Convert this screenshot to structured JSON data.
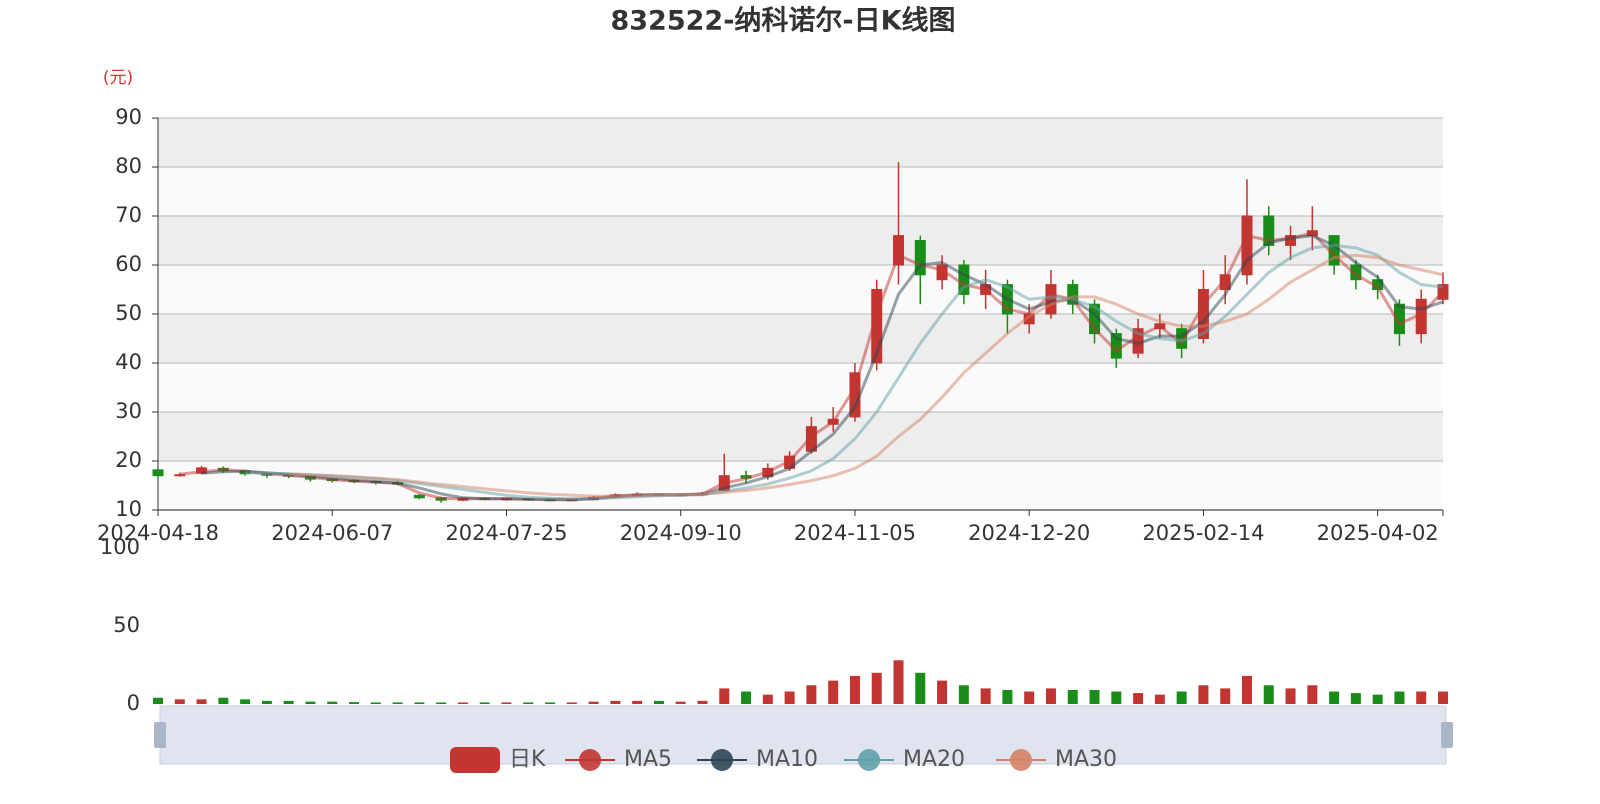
{
  "chart_data": {
    "type": "candlestick",
    "title": "832522-纳科诺尔-日K线图",
    "ylabel": "(元)",
    "categories": [
      "2024-04-18",
      null,
      null,
      null,
      null,
      null,
      null,
      null,
      "2024-06-07",
      null,
      null,
      null,
      null,
      null,
      null,
      null,
      "2024-07-25",
      null,
      null,
      null,
      null,
      null,
      null,
      null,
      "2024-09-10",
      null,
      null,
      null,
      null,
      null,
      null,
      null,
      "2024-11-05",
      null,
      null,
      null,
      null,
      null,
      null,
      null,
      "2024-12-20",
      null,
      null,
      null,
      null,
      null,
      null,
      null,
      "2025-02-14",
      null,
      null,
      null,
      null,
      null,
      null,
      null,
      "2025-04-02",
      null,
      null,
      null
    ],
    "ylim": [
      10,
      90
    ],
    "yticks": [
      10,
      20,
      30,
      40,
      50,
      60,
      70,
      80,
      90
    ],
    "grid": true,
    "series": [
      {
        "name": "日K",
        "type": "candlestick",
        "up_color": "#c23531",
        "down_color": "#1a8c1a",
        "values": [
          [
            18.2,
            17.0,
            16.6,
            18.5
          ],
          [
            17.0,
            17.2,
            16.8,
            17.6
          ],
          [
            17.5,
            18.6,
            17.3,
            19.0
          ],
          [
            18.5,
            18.0,
            17.6,
            18.9
          ],
          [
            18.0,
            17.4,
            17.0,
            18.2
          ],
          [
            17.4,
            17.1,
            16.6,
            17.6
          ],
          [
            17.1,
            16.9,
            16.5,
            17.3
          ],
          [
            16.9,
            16.3,
            15.8,
            17.1
          ],
          [
            16.3,
            16.0,
            15.6,
            16.5
          ],
          [
            16.0,
            15.8,
            15.5,
            16.3
          ],
          [
            15.8,
            15.6,
            15.2,
            16.0
          ],
          [
            15.6,
            15.3,
            15.0,
            16.0
          ],
          [
            13.0,
            12.5,
            12.2,
            13.2
          ],
          [
            12.5,
            12.0,
            11.5,
            12.7
          ],
          [
            12.0,
            12.4,
            11.8,
            12.6
          ],
          [
            12.4,
            12.2,
            12.0,
            12.6
          ],
          [
            12.2,
            12.3,
            11.9,
            12.5
          ],
          [
            12.3,
            12.1,
            11.9,
            12.4
          ],
          [
            12.1,
            12.0,
            11.8,
            12.3
          ],
          [
            12.0,
            12.1,
            11.8,
            12.3
          ],
          [
            12.1,
            12.6,
            12.0,
            12.9
          ],
          [
            12.6,
            13.1,
            12.4,
            13.4
          ],
          [
            13.1,
            13.2,
            12.8,
            13.6
          ],
          [
            13.2,
            13.0,
            12.8,
            13.4
          ],
          [
            13.0,
            13.1,
            12.8,
            13.4
          ],
          [
            13.1,
            13.4,
            12.9,
            13.7
          ],
          [
            14.0,
            17.0,
            13.8,
            21.5
          ],
          [
            17.0,
            16.5,
            15.5,
            18.0
          ],
          [
            16.8,
            18.5,
            16.2,
            19.5
          ],
          [
            18.5,
            21.0,
            18.0,
            22.0
          ],
          [
            22.0,
            27.0,
            21.5,
            29.0
          ],
          [
            27.5,
            28.5,
            26.0,
            31.0
          ],
          [
            29.0,
            38.0,
            28.0,
            40.0
          ],
          [
            40.0,
            55.0,
            38.5,
            57.0
          ],
          [
            60.0,
            66.0,
            56.0,
            81.0
          ],
          [
            65.0,
            58.0,
            52.0,
            66.0
          ],
          [
            57.0,
            60.0,
            55.0,
            62.0
          ],
          [
            60.0,
            54.0,
            52.0,
            61.0
          ],
          [
            54.0,
            56.0,
            51.0,
            59.0
          ],
          [
            56.0,
            50.0,
            46.0,
            57.0
          ],
          [
            48.0,
            50.0,
            46.0,
            52.0
          ],
          [
            50.0,
            56.0,
            49.0,
            59.0
          ],
          [
            56.0,
            52.0,
            50.0,
            57.0
          ],
          [
            52.0,
            46.0,
            44.0,
            53.0
          ],
          [
            46.0,
            41.0,
            39.0,
            47.0
          ],
          [
            42.0,
            47.0,
            41.0,
            49.0
          ],
          [
            47.0,
            48.0,
            45.0,
            50.0
          ],
          [
            47.0,
            43.0,
            41.0,
            48.0
          ],
          [
            45.0,
            55.0,
            44.0,
            59.0
          ],
          [
            55.0,
            58.0,
            52.0,
            62.0
          ],
          [
            58.0,
            70.0,
            56.0,
            77.5
          ],
          [
            70.0,
            64.0,
            62.0,
            72.0
          ],
          [
            64.0,
            66.0,
            61.0,
            68.0
          ],
          [
            66.0,
            67.0,
            63.0,
            72.0
          ],
          [
            66.0,
            60.0,
            58.0,
            66.0
          ],
          [
            60.0,
            57.0,
            55.0,
            61.0
          ],
          [
            57.0,
            55.0,
            53.0,
            58.0
          ],
          [
            52.0,
            46.0,
            43.5,
            53.0
          ],
          [
            46.0,
            53.0,
            44.0,
            55.0
          ],
          [
            53.0,
            56.0,
            52.0,
            58.5
          ]
        ]
      },
      {
        "name": "MA5",
        "color": "#c23531",
        "values": [
          null,
          17.3,
          17.8,
          18.2,
          17.9,
          17.4,
          17.1,
          16.7,
          16.2,
          15.9,
          15.7,
          15.4,
          13.5,
          12.4,
          12.3,
          12.3,
          12.3,
          12.2,
          12.1,
          12.1,
          12.4,
          12.9,
          13.1,
          13.1,
          13.1,
          13.3,
          15.5,
          16.4,
          17.8,
          20.0,
          25.0,
          28.0,
          35.0,
          50.0,
          62.0,
          60.0,
          59.0,
          56.0,
          55.0,
          51.0,
          50.0,
          54.0,
          53.0,
          47.0,
          42.5,
          45.5,
          47.5,
          44.0,
          52.0,
          57.0,
          66.0,
          65.0,
          65.5,
          66.5,
          62.0,
          58.0,
          55.5,
          48.0,
          50.0,
          54.5
        ]
      },
      {
        "name": "MA10",
        "color": "#2f4554",
        "values": [
          null,
          null,
          17.5,
          17.8,
          17.9,
          17.6,
          17.3,
          16.9,
          16.5,
          16.1,
          15.8,
          15.5,
          14.5,
          13.3,
          12.5,
          12.3,
          12.3,
          12.2,
          12.2,
          12.1,
          12.3,
          12.7,
          13.0,
          13.1,
          13.1,
          13.2,
          14.5,
          15.5,
          16.8,
          18.5,
          22.0,
          25.5,
          31.0,
          42.0,
          54.0,
          60.0,
          60.5,
          58.0,
          56.0,
          53.0,
          51.0,
          52.5,
          53.0,
          50.0,
          45.0,
          44.0,
          45.5,
          45.5,
          48.5,
          54.0,
          61.0,
          64.5,
          65.5,
          66.0,
          64.0,
          60.5,
          57.5,
          51.5,
          51.0,
          52.5
        ]
      },
      {
        "name": "MA20",
        "color": "#61a0a8",
        "values": [
          null,
          null,
          null,
          null,
          17.6,
          17.5,
          17.4,
          17.2,
          17.0,
          16.7,
          16.4,
          16.0,
          15.4,
          14.8,
          14.2,
          13.6,
          13.0,
          12.6,
          12.4,
          12.3,
          12.3,
          12.5,
          12.7,
          12.9,
          13.0,
          13.1,
          13.8,
          14.5,
          15.3,
          16.5,
          18.0,
          20.5,
          24.5,
          30.0,
          37.0,
          44.0,
          50.0,
          55.5,
          57.0,
          55.5,
          53.0,
          53.5,
          53.0,
          51.5,
          48.5,
          46.0,
          45.0,
          44.5,
          46.0,
          49.5,
          54.0,
          58.5,
          61.5,
          63.5,
          64.0,
          63.5,
          62.0,
          58.5,
          56.0,
          55.5
        ]
      },
      {
        "name": "MA30",
        "color": "#d48265",
        "values": [
          null,
          null,
          null,
          null,
          null,
          null,
          17.3,
          17.2,
          17.0,
          16.8,
          16.5,
          16.2,
          15.7,
          15.2,
          14.8,
          14.3,
          13.9,
          13.5,
          13.2,
          13.0,
          12.8,
          12.8,
          12.9,
          13.0,
          13.1,
          13.2,
          13.6,
          14.0,
          14.5,
          15.2,
          16.0,
          17.0,
          18.5,
          21.0,
          25.0,
          28.5,
          33.0,
          38.0,
          42.0,
          46.0,
          49.5,
          52.0,
          53.5,
          53.5,
          52.0,
          50.0,
          48.5,
          47.5,
          47.5,
          48.5,
          50.0,
          53.0,
          56.5,
          59.0,
          61.5,
          62.0,
          61.5,
          60.0,
          59.0,
          58.0
        ]
      }
    ],
    "volume": {
      "ylim": [
        0,
        100
      ],
      "yticks": [
        0,
        50,
        100
      ],
      "values": [
        4,
        3,
        3,
        4,
        3,
        2,
        2,
        1.5,
        1.5,
        1.2,
        1,
        1,
        1,
        1,
        1,
        1,
        1,
        1,
        1,
        1,
        1.5,
        2,
        2,
        2,
        1.5,
        2,
        10,
        8,
        6,
        8,
        12,
        15,
        18,
        20,
        28,
        20,
        15,
        12,
        10,
        9,
        8,
        10,
        9,
        9,
        8,
        7,
        6,
        8,
        12,
        10,
        18,
        12,
        10,
        12,
        8,
        7,
        6,
        8,
        8,
        8
      ]
    }
  }
}
